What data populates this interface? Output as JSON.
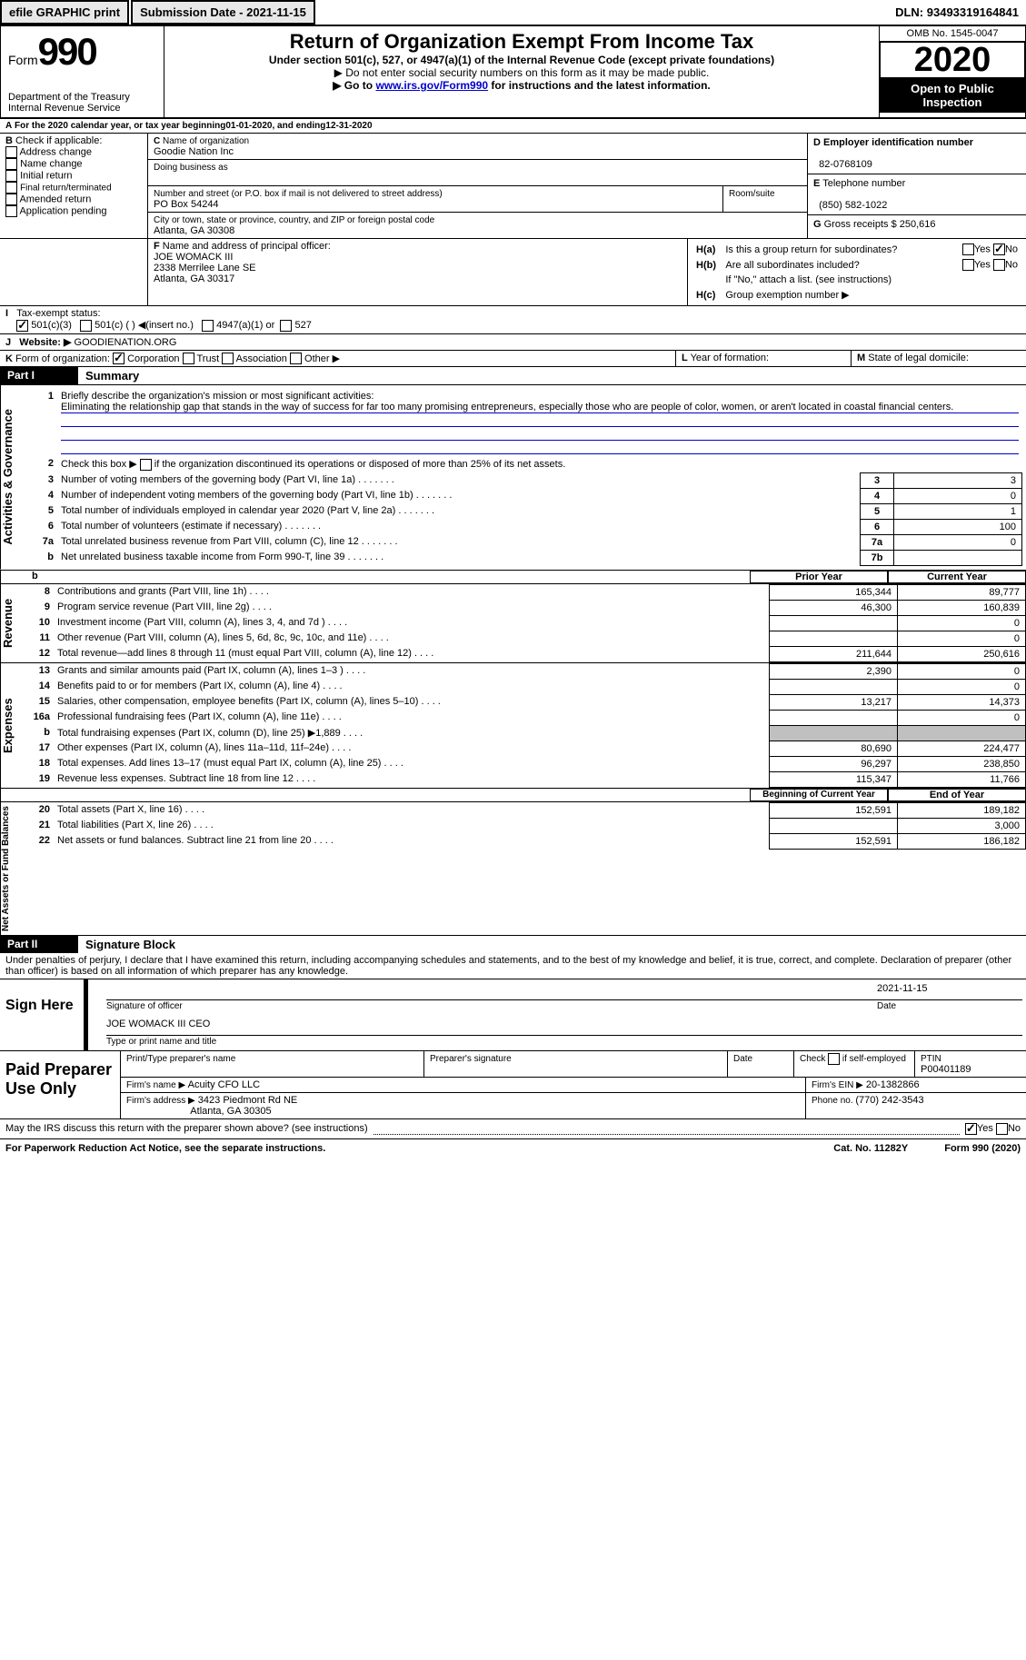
{
  "top": {
    "efile": "efile GRAPHIC print",
    "submission_label": "Submission Date - ",
    "submission_date": "2021-11-15",
    "dln_label": "DLN: ",
    "dln": "93493319164841"
  },
  "header": {
    "form_label": "Form",
    "form_number": "990",
    "dept": "Department of the Treasury\nInternal Revenue Service",
    "title": "Return of Organization Exempt From Income Tax",
    "subtitle": "Under section 501(c), 527, or 4947(a)(1) of the Internal Revenue Code (except private foundations)",
    "instr1": "▶ Do not enter social security numbers on this form as it may be made public.",
    "instr2_pre": "▶ Go to ",
    "instr2_link": "www.irs.gov/Form990",
    "instr2_post": " for instructions and the latest information.",
    "omb": "OMB No. 1545-0047",
    "year": "2020",
    "open_public": "Open to Public Inspection"
  },
  "A": {
    "text_pre": "For the 2020 calendar year, or tax year beginning ",
    "begin": "01-01-2020",
    "mid": " , and ending ",
    "end": "12-31-2020"
  },
  "B": {
    "label": "Check if applicable:",
    "opts": [
      "Address change",
      "Name change",
      "Initial return",
      "Final return/terminated",
      "Amended return",
      "Application pending"
    ]
  },
  "C": {
    "name_label": "Name of organization",
    "name": "Goodie Nation Inc",
    "dba_label": "Doing business as",
    "street_label": "Number and street (or P.O. box if mail is not delivered to street address)",
    "street": "PO Box 54244",
    "room_label": "Room/suite",
    "city_label": "City or town, state or province, country, and ZIP or foreign postal code",
    "city": "Atlanta, GA   30308"
  },
  "D": {
    "label": "Employer identification number",
    "ein": "82-0768109"
  },
  "E": {
    "label": "Telephone number",
    "phone": "(850) 582-1022"
  },
  "F": {
    "label": "Name and address of principal officer:",
    "name": "JOE WOMACK III",
    "addr1": "2338 Merrilee Lane SE",
    "addr2": "Atlanta, GA   30317"
  },
  "G": {
    "label": "Gross receipts $ ",
    "value": "250,616"
  },
  "H": {
    "a": "Is this a group return for subordinates?",
    "b": "Are all subordinates included?",
    "b_note": "If \"No,\" attach a list. (see instructions)",
    "c_label": "Group exemption number ▶",
    "yes": "Yes",
    "no": "No"
  },
  "I": {
    "label": "Tax-exempt status:",
    "opts": [
      "501(c)(3)",
      "501(c) (   )",
      "(insert no.)",
      "4947(a)(1) or",
      "527"
    ]
  },
  "J": {
    "label": "Website: ▶",
    "value": "GOODIENATION.ORG"
  },
  "K": {
    "label": "Form of organization:",
    "opts": [
      "Corporation",
      "Trust",
      "Association",
      "Other ▶"
    ]
  },
  "L": {
    "label": "Year of formation:"
  },
  "M": {
    "label": "State of legal domicile:"
  },
  "partI": {
    "label": "Part I",
    "title": "Summary"
  },
  "sideLabels": {
    "act": "Activities & Governance",
    "rev": "Revenue",
    "exp": "Expenses",
    "net": "Net Assets or Fund Balances"
  },
  "summary": {
    "q1": "Briefly describe the organization's mission or most significant activities:",
    "mission": "Eliminating the relationship gap that stands in the way of success for far too many promising entrepreneurs, especially those who are people of color, women, or aren't located in coastal financial centers.",
    "q2": "Check this box ▶       if the organization discontinued its operations or disposed of more than 25% of its net assets.",
    "lines_gov": [
      {
        "n": "3",
        "t": "Number of voting members of the governing body (Part VI, line 1a)",
        "box": "3",
        "v": "3"
      },
      {
        "n": "4",
        "t": "Number of independent voting members of the governing body (Part VI, line 1b)",
        "box": "4",
        "v": "0"
      },
      {
        "n": "5",
        "t": "Total number of individuals employed in calendar year 2020 (Part V, line 2a)",
        "box": "5",
        "v": "1"
      },
      {
        "n": "6",
        "t": "Total number of volunteers (estimate if necessary)",
        "box": "6",
        "v": "100"
      },
      {
        "n": "7a",
        "t": "Total unrelated business revenue from Part VIII, column (C), line 12",
        "box": "7a",
        "v": "0"
      },
      {
        "n": "b",
        "t": "Net unrelated business taxable income from Form 990-T, line 39",
        "box": "7b",
        "v": ""
      }
    ],
    "col_prior": "Prior Year",
    "col_current": "Current Year",
    "lines_rev": [
      {
        "n": "8",
        "t": "Contributions and grants (Part VIII, line 1h)",
        "p": "165,344",
        "c": "89,777"
      },
      {
        "n": "9",
        "t": "Program service revenue (Part VIII, line 2g)",
        "p": "46,300",
        "c": "160,839"
      },
      {
        "n": "10",
        "t": "Investment income (Part VIII, column (A), lines 3, 4, and 7d )",
        "p": "",
        "c": "0"
      },
      {
        "n": "11",
        "t": "Other revenue (Part VIII, column (A), lines 5, 6d, 8c, 9c, 10c, and 11e)",
        "p": "",
        "c": "0"
      },
      {
        "n": "12",
        "t": "Total revenue—add lines 8 through 11 (must equal Part VIII, column (A), line 12)",
        "p": "211,644",
        "c": "250,616"
      }
    ],
    "lines_exp": [
      {
        "n": "13",
        "t": "Grants and similar amounts paid (Part IX, column (A), lines 1–3 )",
        "p": "2,390",
        "c": "0"
      },
      {
        "n": "14",
        "t": "Benefits paid to or for members (Part IX, column (A), line 4)",
        "p": "",
        "c": "0"
      },
      {
        "n": "15",
        "t": "Salaries, other compensation, employee benefits (Part IX, column (A), lines 5–10)",
        "p": "13,217",
        "c": "14,373"
      },
      {
        "n": "16a",
        "t": "Professional fundraising fees (Part IX, column (A), line 11e)",
        "p": "",
        "c": "0"
      },
      {
        "n": "b",
        "t": "Total fundraising expenses (Part IX, column (D), line 25) ▶1,889",
        "p": "grey",
        "c": "grey"
      },
      {
        "n": "17",
        "t": "Other expenses (Part IX, column (A), lines 11a–11d, 11f–24e)",
        "p": "80,690",
        "c": "224,477"
      },
      {
        "n": "18",
        "t": "Total expenses. Add lines 13–17 (must equal Part IX, column (A), line 25)",
        "p": "96,297",
        "c": "238,850"
      },
      {
        "n": "19",
        "t": "Revenue less expenses. Subtract line 18 from line 12",
        "p": "115,347",
        "c": "11,766"
      }
    ],
    "col_begin": "Beginning of Current Year",
    "col_end": "End of Year",
    "lines_net": [
      {
        "n": "20",
        "t": "Total assets (Part X, line 16)",
        "p": "152,591",
        "c": "189,182"
      },
      {
        "n": "21",
        "t": "Total liabilities (Part X, line 26)",
        "p": "",
        "c": "3,000"
      },
      {
        "n": "22",
        "t": "Net assets or fund balances. Subtract line 21 from line 20",
        "p": "152,591",
        "c": "186,182"
      }
    ]
  },
  "partII": {
    "label": "Part II",
    "title": "Signature Block",
    "perjury": "Under penalties of perjury, I declare that I have examined this return, including accompanying schedules and statements, and to the best of my knowledge and belief, it is true, correct, and complete. Declaration of preparer (other than officer) is based on all information of which preparer has any knowledge."
  },
  "sign": {
    "here": "Sign Here",
    "sig_officer": "Signature of officer",
    "date": "Date",
    "sig_date": "2021-11-15",
    "name": "JOE WOMACK III CEO",
    "type_name": "Type or print name and title"
  },
  "paid": {
    "label": "Paid Preparer Use Only",
    "print_name": "Print/Type preparer's name",
    "prep_sig": "Preparer's signature",
    "date": "Date",
    "check_self": "Check       if self-employed",
    "ptin_label": "PTIN",
    "ptin": "P00401189",
    "firm_name_label": "Firm's name    ▶",
    "firm_name": "Acuity CFO LLC",
    "firm_ein_label": "Firm's EIN ▶",
    "firm_ein": "20-1382866",
    "firm_addr_label": "Firm's address ▶",
    "firm_addr1": "3423 Piedmont Rd NE",
    "firm_addr2": "Atlanta, GA   30305",
    "phone_label": "Phone no. ",
    "phone": "(770) 242-3543"
  },
  "footer": {
    "discuss": "May the IRS discuss this return with the preparer shown above? (see instructions)",
    "yes": "Yes",
    "no": "No",
    "paperwork": "For Paperwork Reduction Act Notice, see the separate instructions.",
    "cat": "Cat. No. 11282Y",
    "form": "Form 990 (2020)"
  }
}
